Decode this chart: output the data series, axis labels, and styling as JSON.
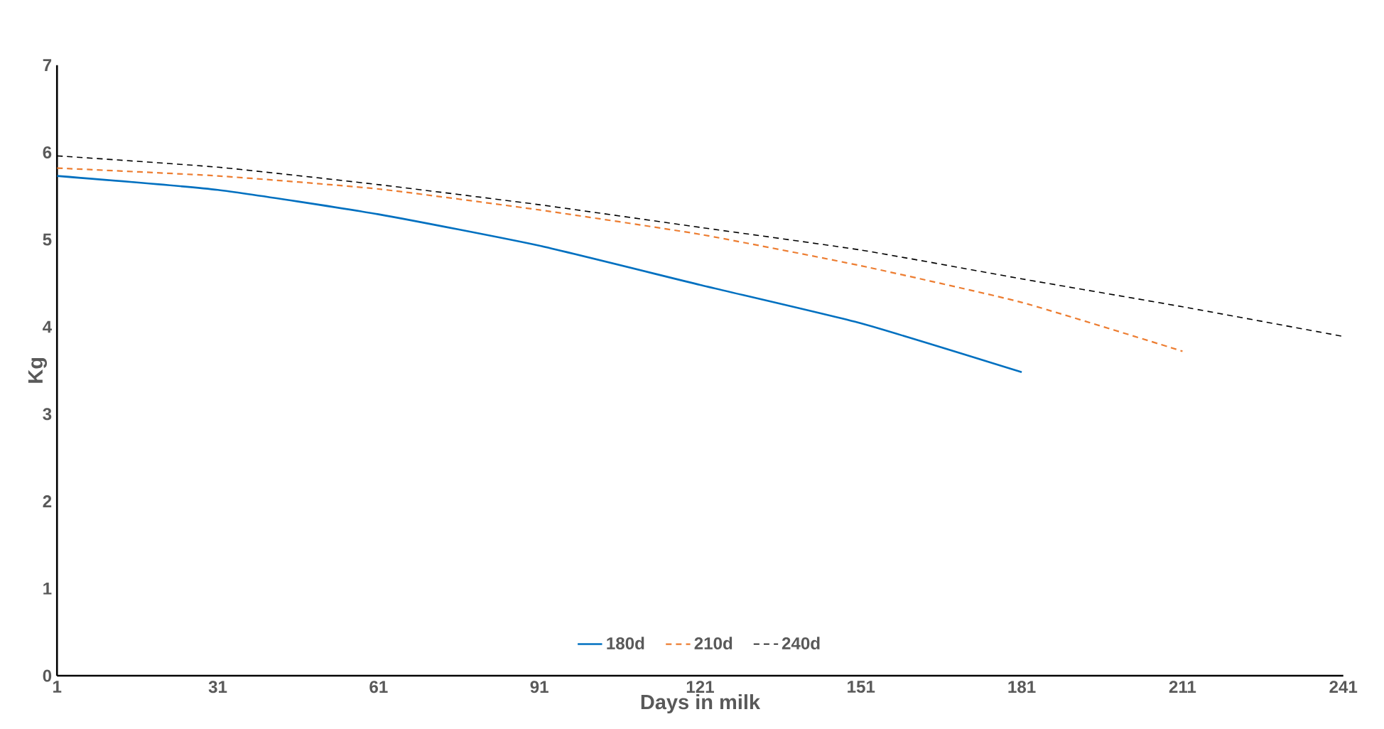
{
  "chart_data": {
    "type": "line",
    "xlabel": "Days in milk",
    "ylabel": "Kg",
    "xlim": [
      1,
      241
    ],
    "xticks": [
      1,
      31,
      61,
      91,
      121,
      151,
      181,
      211,
      241
    ],
    "ylim": [
      0,
      7
    ],
    "yticks": [
      0,
      1,
      2,
      3,
      4,
      5,
      6,
      7
    ],
    "grid": false,
    "legend": "bottom",
    "marker": "none",
    "series": [
      {
        "name": "180d",
        "color": "#0070c0",
        "line_style": "solid",
        "x": [
          1,
          31,
          61,
          91,
          121,
          151,
          181
        ],
        "values": [
          5.73,
          5.57,
          5.29,
          4.93,
          4.48,
          4.04,
          3.48
        ]
      },
      {
        "name": "210d",
        "color": "#ed7d31",
        "line_style": "dashed",
        "x": [
          1,
          31,
          61,
          91,
          121,
          151,
          181,
          211
        ],
        "values": [
          5.82,
          5.73,
          5.58,
          5.34,
          5.06,
          4.7,
          4.28,
          3.72
        ]
      },
      {
        "name": "240d",
        "color": "#000000",
        "line_style": "dashed",
        "x": [
          1,
          31,
          61,
          91,
          121,
          151,
          181,
          211,
          241
        ],
        "values": [
          5.96,
          5.83,
          5.63,
          5.4,
          5.14,
          4.88,
          4.55,
          4.23,
          3.89
        ]
      }
    ]
  }
}
